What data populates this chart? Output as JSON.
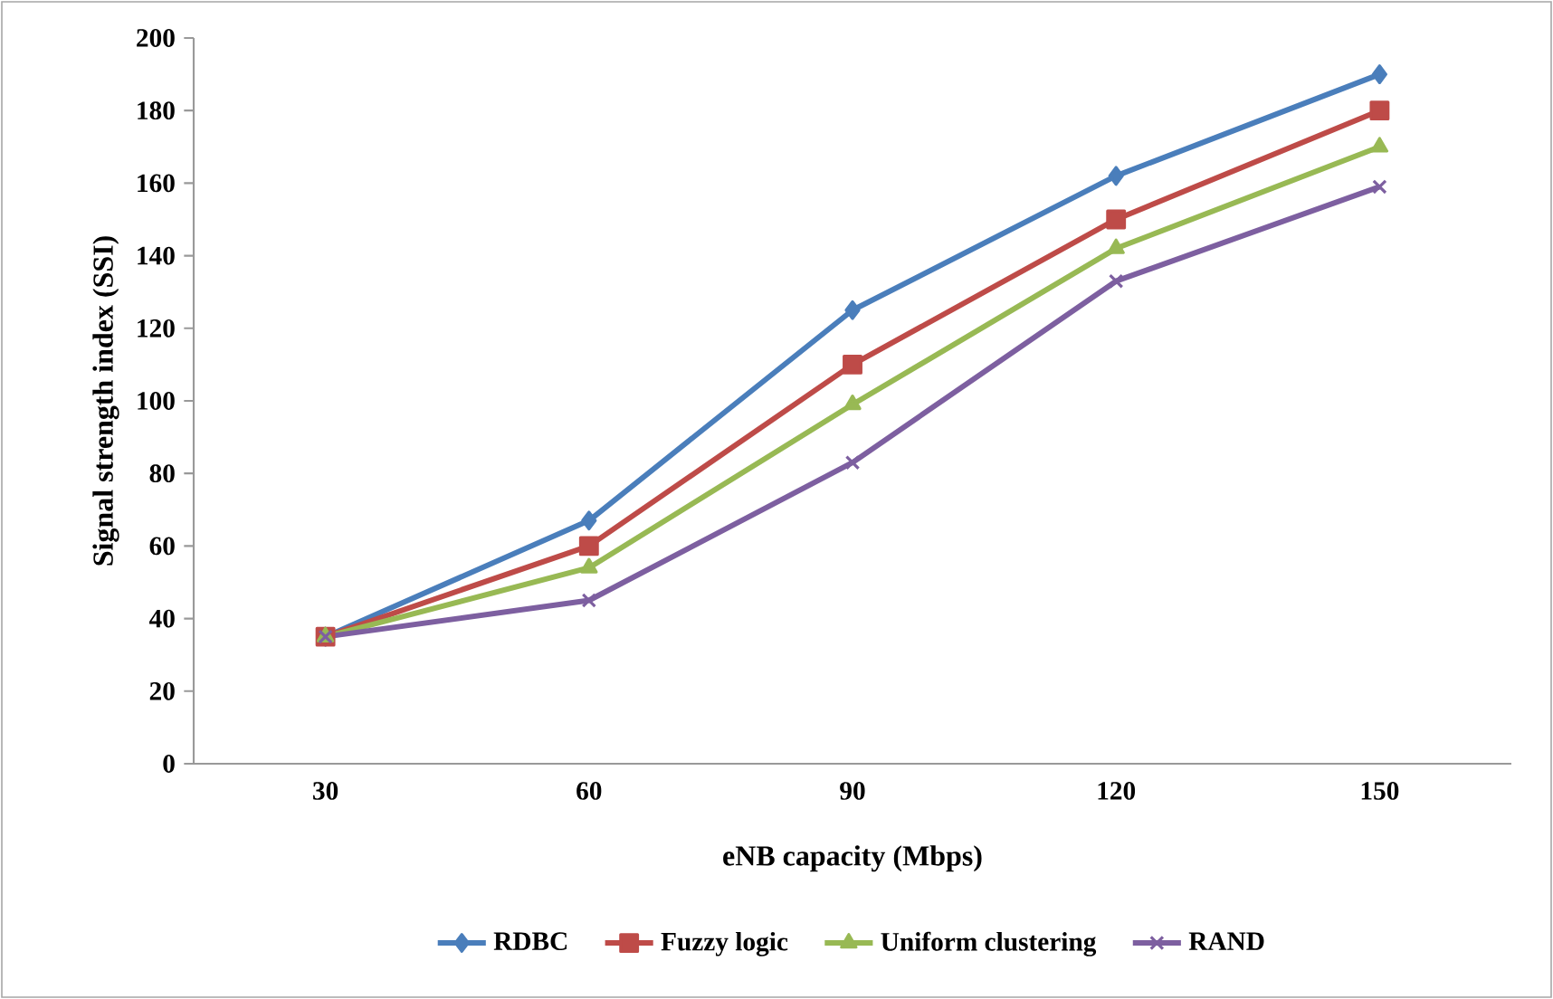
{
  "chart_data": {
    "type": "line",
    "xlabel": "eNB capacity (Mbps)",
    "ylabel": "Signal strength index (SSI)",
    "categories": [
      "30",
      "60",
      "90",
      "120",
      "150"
    ],
    "ylim": [
      0,
      200
    ],
    "yticks": [
      0,
      20,
      40,
      60,
      80,
      100,
      120,
      140,
      160,
      180,
      200
    ],
    "legend": "bottom",
    "line_style": "solid",
    "series": [
      {
        "name": "RDBC",
        "color": "#4a7ebb",
        "marker": "diamond",
        "values": [
          35,
          67,
          125,
          162,
          190
        ]
      },
      {
        "name": "Fuzzy logic",
        "color": "#be4b48",
        "marker": "square",
        "values": [
          35,
          60,
          110,
          150,
          180
        ]
      },
      {
        "name": "Uniform clustering",
        "color": "#98b954",
        "marker": "triangle",
        "values": [
          35,
          54,
          99,
          142,
          170
        ]
      },
      {
        "name": "RAND",
        "color": "#7d5fa0",
        "marker": "cross",
        "values": [
          35,
          45,
          83,
          133,
          159
        ]
      }
    ]
  }
}
